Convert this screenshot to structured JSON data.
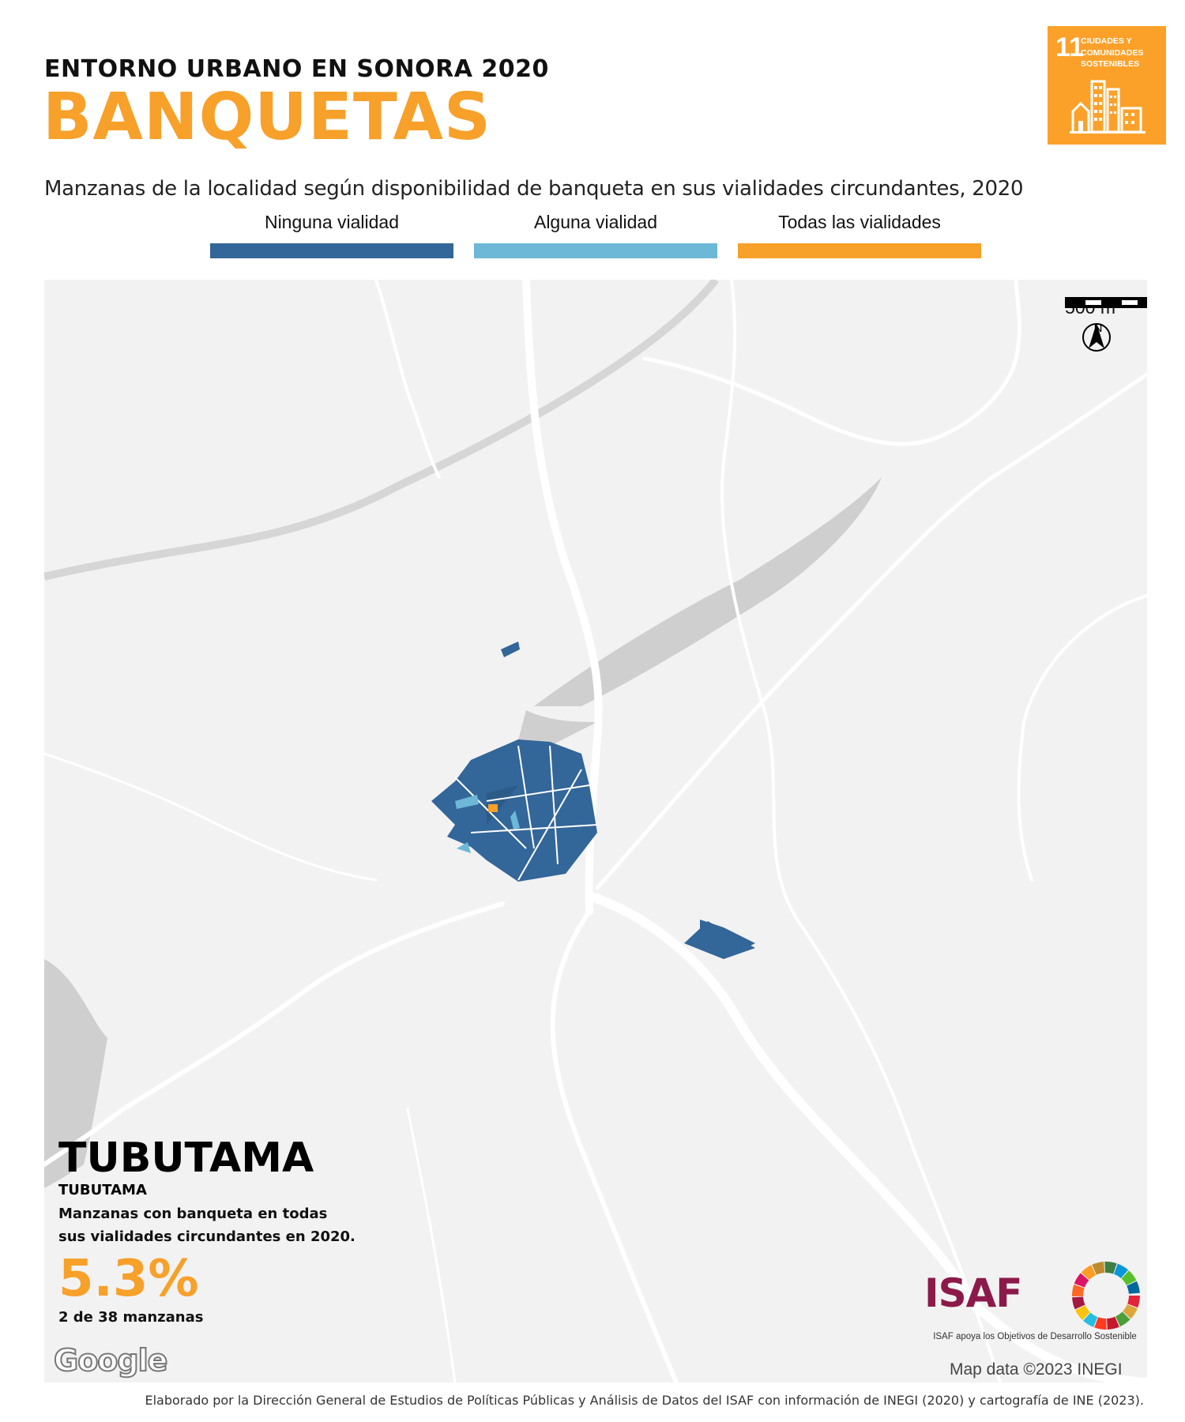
{
  "header": {
    "subtitle": "ENTORNO URBANO EN SONORA 2020",
    "title": "BANQUETAS"
  },
  "sdg_badge": {
    "number": "11",
    "text": "CIUDADES Y COMUNIDADES SOSTENIBLES",
    "color": "#FBA12A"
  },
  "map_subtitle": "Manzanas de la localidad según disponibilidad de banqueta en sus vialidades circundantes, 2020",
  "legend": [
    {
      "label": "Ninguna vialidad",
      "color": "#336699"
    },
    {
      "label": "Alguna vialidad",
      "color": "#6CB8D6"
    },
    {
      "label": "Todas las vialidades",
      "color": "#F7A02A"
    }
  ],
  "map": {
    "scale_label": "500 m",
    "north_label": "N",
    "attribution": "Map data ©2023 INEGI",
    "provider_logo": "Google",
    "background_color": "#f2f2f2"
  },
  "info": {
    "municipality": "TUBUTAMA",
    "locality": "TUBUTAMA",
    "description": "Manzanas con banqueta en todas sus vialidades circundantes en 2020.",
    "percentage": "5.3%",
    "count": "2 de 38 manzanas"
  },
  "isaf": {
    "logo_text": "ISAF",
    "tagline": "ISAF apoya los Objetivos de Desarrollo Sostenible"
  },
  "footer": "Elaborado por la Dirección General de Estudios de Políticas Públicas y Análisis de Datos del ISAF con información de INEGI (2020) y cartografía de INE (2023)."
}
